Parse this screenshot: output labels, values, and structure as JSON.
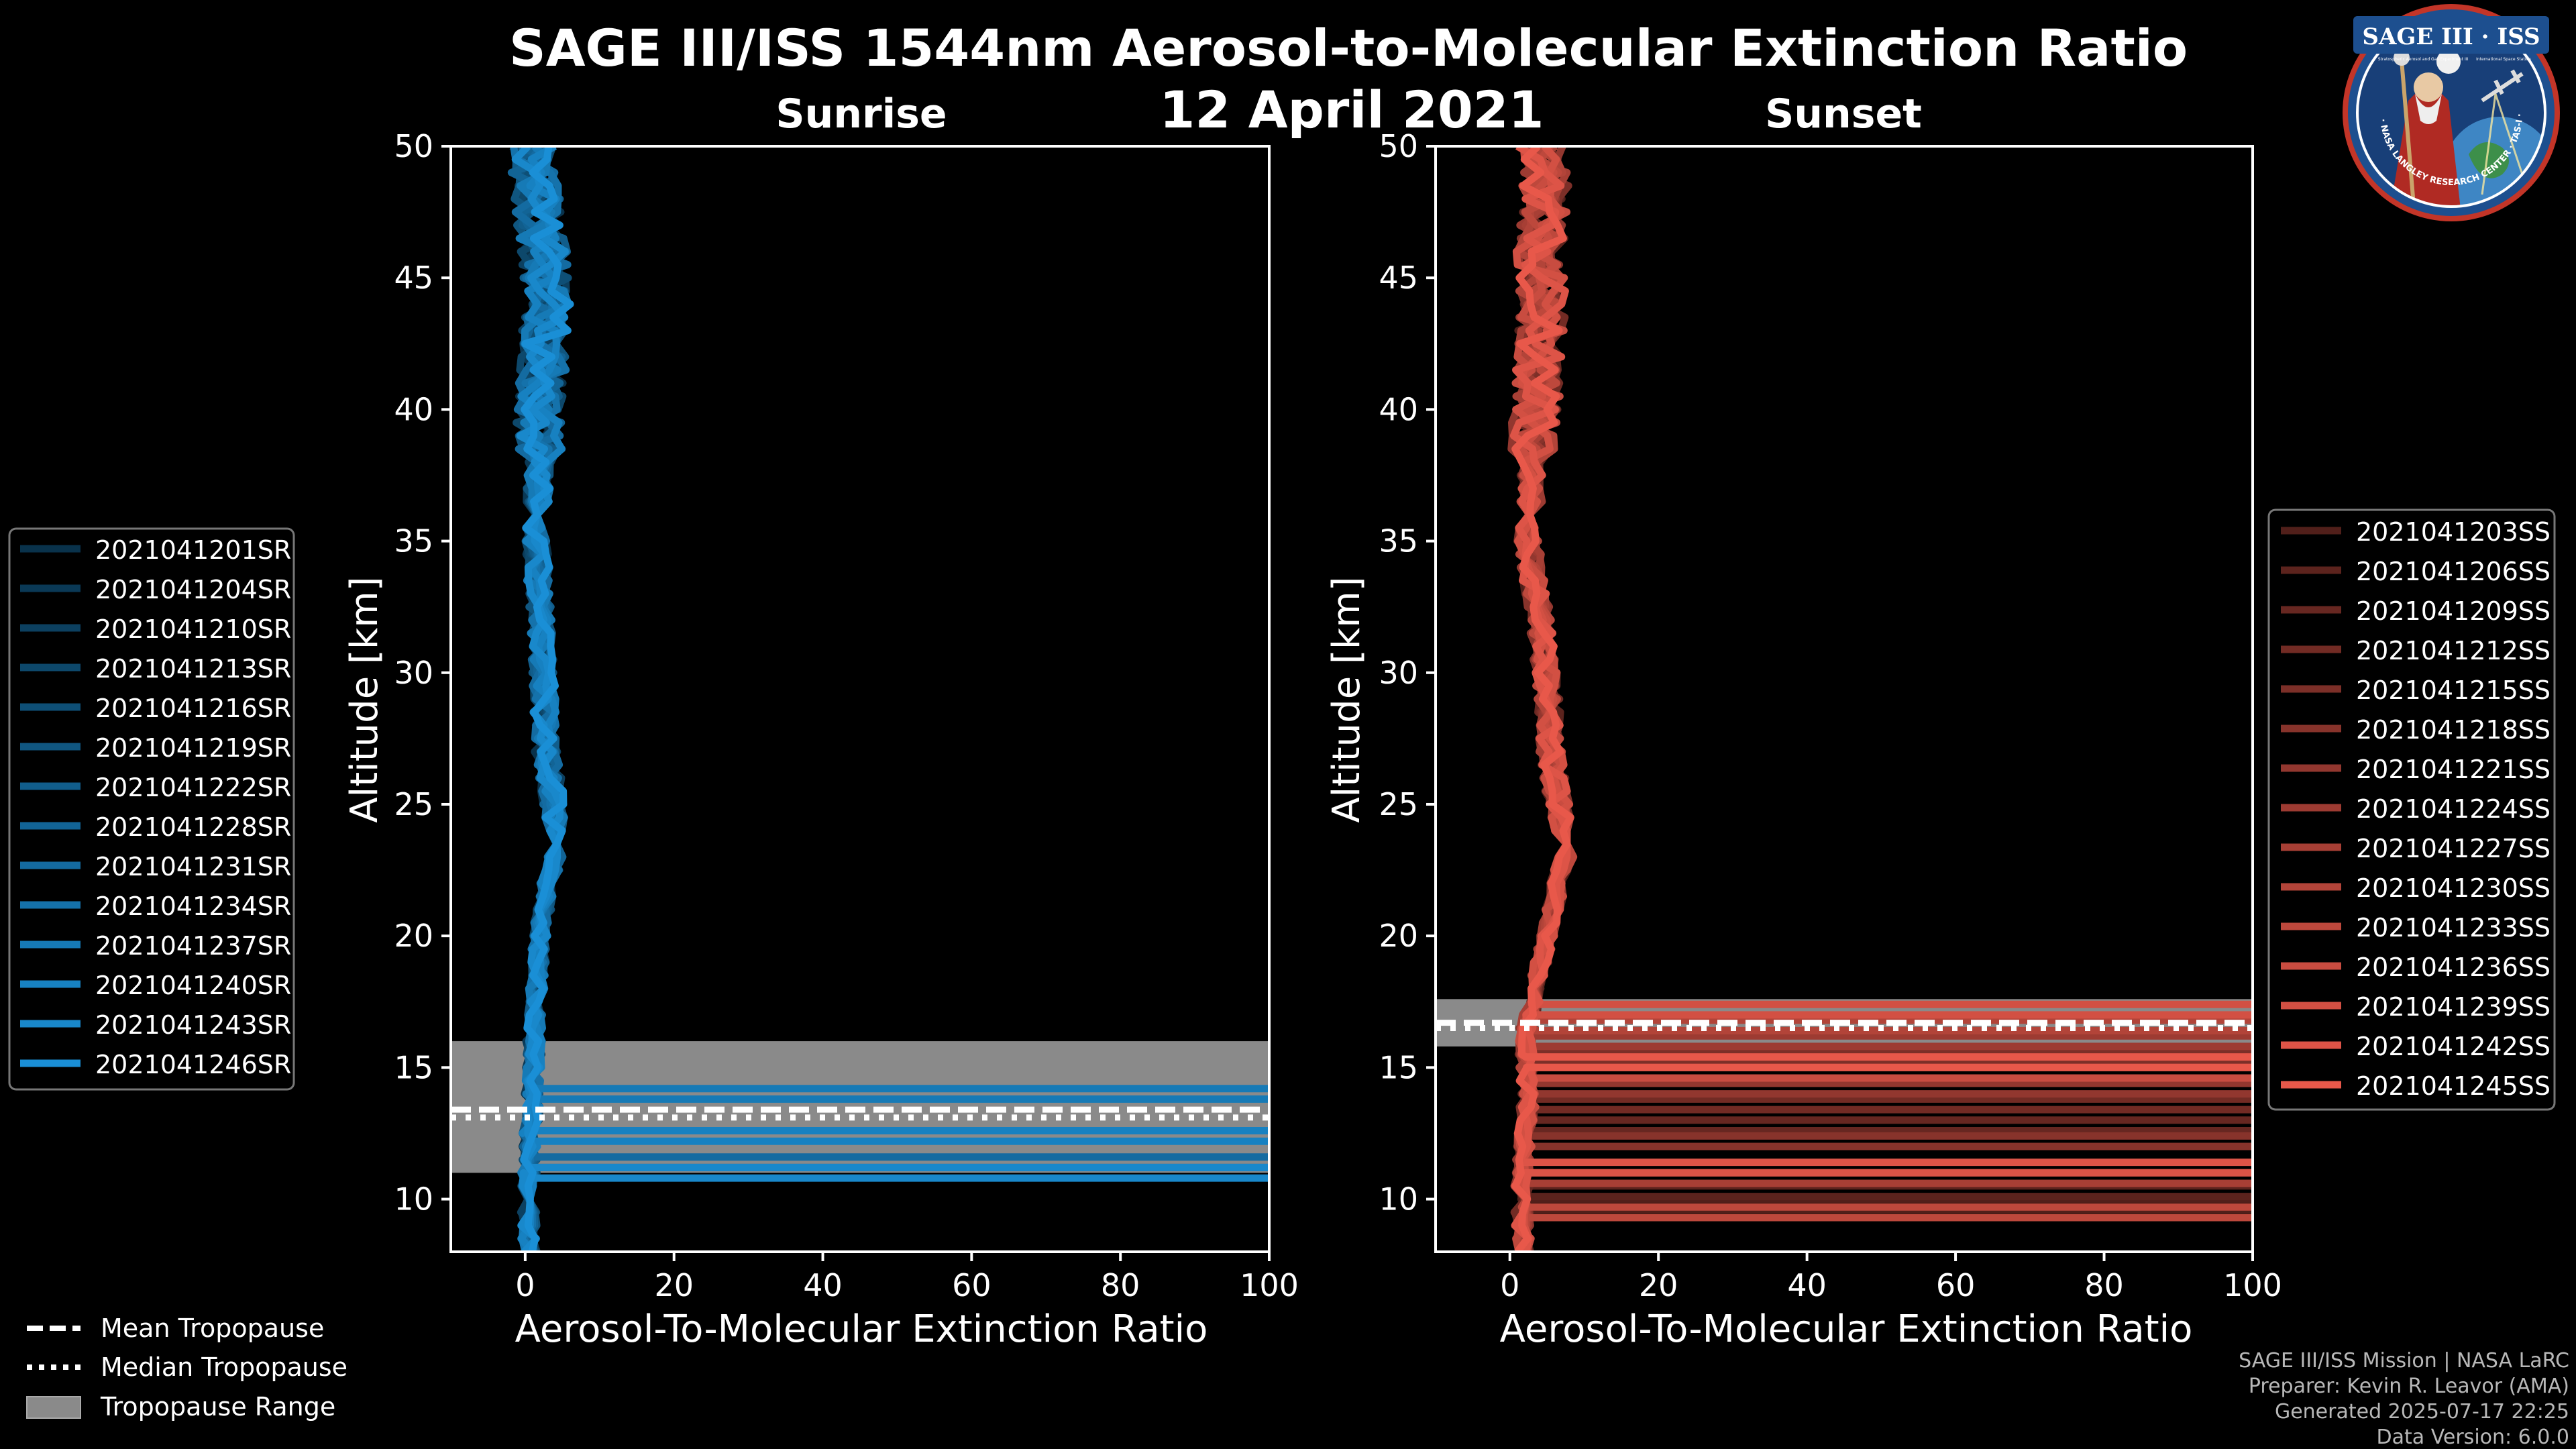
{
  "title": "SAGE III/ISS 1544nm Aerosol-to-Molecular Extinction Ratio",
  "date": "12 April 2021",
  "logo": {
    "text": "SAGE III · ISS",
    "ring_text": "BALL · NASA LANGLEY RESEARCH CENTER · TAS-I · ESA",
    "tagline_left": "Stratospheric Aerosol and Gas Experiment III",
    "tagline_right": "International Space Station"
  },
  "footer": {
    "mission": "SAGE III/ISS Mission | NASA LaRC",
    "preparer": "Preparer: Kevin R. Leavor (AMA)",
    "generated": "Generated 2025-07-17 22:25",
    "version": "Data Version: 6.0.0"
  },
  "colors": {
    "sunrise": "#1a8fd6",
    "sunset": "#e8584a",
    "tropopause_range": "#8a8a8a"
  },
  "tropo_legend": [
    {
      "label": "Mean Tropopause",
      "style": "dashed"
    },
    {
      "label": "Median Tropopause",
      "style": "dotted"
    },
    {
      "label": "Tropopause Range",
      "style": "patch"
    }
  ],
  "chart_data": [
    {
      "type": "line",
      "subtitle": "Sunrise",
      "xlabel": "Aerosol-To-Molecular Extinction Ratio",
      "ylabel": "Altitude [km]",
      "xlim": [
        -10,
        100
      ],
      "ylim": [
        8,
        50
      ],
      "xticks": [
        0,
        20,
        40,
        60,
        80,
        100
      ],
      "yticks": [
        10,
        15,
        20,
        25,
        30,
        35,
        40,
        45,
        50
      ],
      "legend_position": "left",
      "tropopause": {
        "mean": 13.4,
        "median": 13.1,
        "range": [
          11.0,
          16.0
        ]
      },
      "series": [
        {
          "name": "2021041201SR",
          "spike_altitude": null
        },
        {
          "name": "2021041204SR",
          "spike_altitude": null
        },
        {
          "name": "2021041210SR",
          "spike_altitude": null
        },
        {
          "name": "2021041213SR",
          "spike_altitude": null
        },
        {
          "name": "2021041216SR",
          "spike_altitude": null
        },
        {
          "name": "2021041219SR",
          "spike_altitude": null
        },
        {
          "name": "2021041222SR",
          "spike_altitude": null
        },
        {
          "name": "2021041228SR",
          "spike_altitude": null
        },
        {
          "name": "2021041231SR",
          "spike_altitude": 11.2
        },
        {
          "name": "2021041234SR",
          "spike_altitude": null
        },
        {
          "name": "2021041237SR",
          "spike_altitude": 13.8
        },
        {
          "name": "2021041240SR",
          "spike_altitude": 12.2
        },
        {
          "name": "2021041243SR",
          "spike_altitude": 10.8
        },
        {
          "name": "2021041246SR",
          "spike_altitude": null
        }
      ],
      "mean_profile": [
        [
          8,
          0.5
        ],
        [
          10,
          0.4
        ],
        [
          12,
          0.6
        ],
        [
          14,
          1.0
        ],
        [
          16,
          1.2
        ],
        [
          18,
          1.5
        ],
        [
          20,
          2.0
        ],
        [
          22,
          3.0
        ],
        [
          23.5,
          4.5
        ],
        [
          25,
          3.8
        ],
        [
          27,
          2.8
        ],
        [
          30,
          2.5
        ],
        [
          33,
          1.8
        ],
        [
          36,
          1.5
        ],
        [
          38,
          2.0
        ],
        [
          40,
          1.8
        ],
        [
          42,
          2.5
        ],
        [
          44,
          3.0
        ],
        [
          46,
          2.5
        ],
        [
          48,
          1.5
        ],
        [
          50,
          1.0
        ]
      ]
    },
    {
      "type": "line",
      "subtitle": "Sunset",
      "xlabel": "Aerosol-To-Molecular Extinction Ratio",
      "ylabel": "Altitude [km]",
      "xlim": [
        -10,
        100
      ],
      "ylim": [
        8,
        50
      ],
      "xticks": [
        0,
        20,
        40,
        60,
        80,
        100
      ],
      "yticks": [
        10,
        15,
        20,
        25,
        30,
        35,
        40,
        45,
        50
      ],
      "legend_position": "right",
      "tropopause": {
        "mean": 16.7,
        "median": 16.5,
        "range": [
          15.8,
          17.6
        ]
      },
      "series": [
        {
          "name": "2021041203SS",
          "spike_altitude": 9.6
        },
        {
          "name": "2021041206SS",
          "spike_altitude": 10.1
        },
        {
          "name": "2021041209SS",
          "spike_altitude": 12.6
        },
        {
          "name": "2021041212SS",
          "spike_altitude": 13.4
        },
        {
          "name": "2021041215SS",
          "spike_altitude": 15.2
        },
        {
          "name": "2021041218SS",
          "spike_altitude": 12.0
        },
        {
          "name": "2021041221SS",
          "spike_altitude": 14.0
        },
        {
          "name": "2021041224SS",
          "spike_altitude": 15.8
        },
        {
          "name": "2021041227SS",
          "spike_altitude": 10.6
        },
        {
          "name": "2021041230SS",
          "spike_altitude": 16.4
        },
        {
          "name": "2021041233SS",
          "spike_altitude": 9.3
        },
        {
          "name": "2021041236SS",
          "spike_altitude": 14.6
        },
        {
          "name": "2021041239SS",
          "spike_altitude": 17.0
        },
        {
          "name": "2021041242SS",
          "spike_altitude": 11.0
        },
        {
          "name": "2021041245SS",
          "spike_altitude": 15.0
        }
      ],
      "mean_profile": [
        [
          8,
          2.0
        ],
        [
          10,
          1.5
        ],
        [
          12,
          2.0
        ],
        [
          14,
          2.5
        ],
        [
          16,
          2.0
        ],
        [
          17.5,
          3.0
        ],
        [
          18,
          3.5
        ],
        [
          20,
          5.0
        ],
        [
          22,
          6.5
        ],
        [
          23,
          7.5
        ],
        [
          25,
          6.5
        ],
        [
          27,
          5.5
        ],
        [
          30,
          5.0
        ],
        [
          33,
          3.5
        ],
        [
          35,
          2.5
        ],
        [
          38,
          3.0
        ],
        [
          40,
          3.5
        ],
        [
          42,
          4.0
        ],
        [
          44,
          4.5
        ],
        [
          46,
          4.0
        ],
        [
          48,
          5.0
        ],
        [
          50,
          4.0
        ]
      ]
    }
  ]
}
